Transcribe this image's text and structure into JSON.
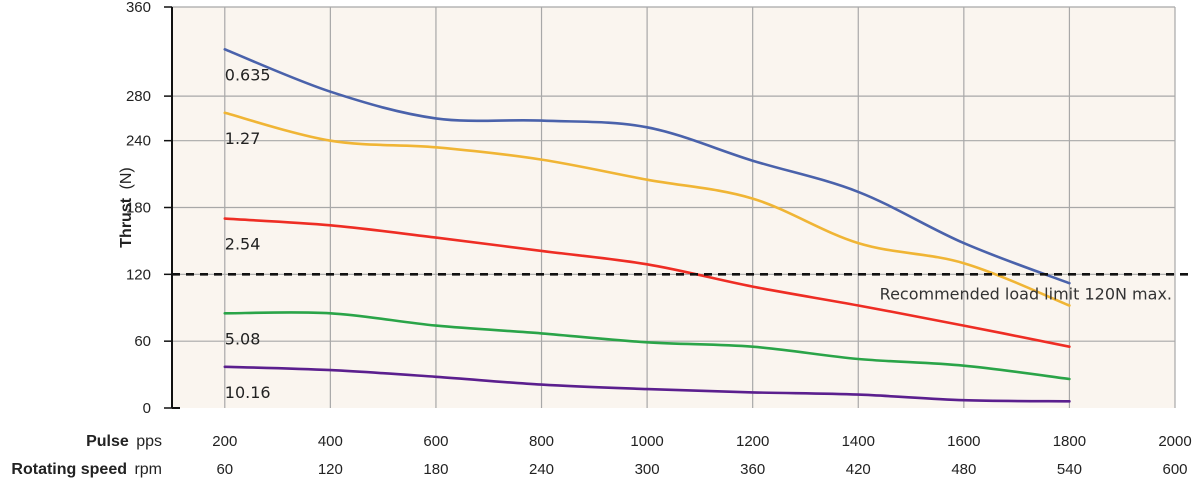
{
  "chart_data": {
    "type": "line",
    "ylabel_bold": "Thrust",
    "ylabel_unit": "(N)",
    "ylim": [
      0,
      360
    ],
    "yticks": [
      0,
      60,
      120,
      180,
      240,
      280,
      360
    ],
    "x_row1": {
      "title_bold": "Pulse",
      "unit": "pps",
      "ticks": [
        "200",
        "400",
        "600",
        "800",
        "1000",
        "1200",
        "1400",
        "1600",
        "1800",
        "2000"
      ]
    },
    "x_row2": {
      "title_bold": "Rotating speed",
      "unit": "rpm",
      "ticks": [
        "60",
        "120",
        "180",
        "240",
        "300",
        "360",
        "420",
        "480",
        "540",
        "600"
      ]
    },
    "xlim": [
      200,
      2000
    ],
    "grid": true,
    "colors": {
      "background": "#faf5ef",
      "grid": "#a8a8a8",
      "axis": "#111111"
    },
    "series": [
      {
        "name": "0.635",
        "color": "#4a62ab",
        "x": [
          200,
          400,
          600,
          800,
          1000,
          1200,
          1400,
          1600,
          1800
        ],
        "y": [
          322,
          284,
          260,
          258,
          252,
          222,
          194,
          148,
          112
        ]
      },
      {
        "name": "1.27",
        "color": "#f0b535",
        "x": [
          200,
          400,
          600,
          800,
          1000,
          1200,
          1400,
          1600,
          1800
        ],
        "y": [
          265,
          240,
          234,
          223,
          205,
          188,
          148,
          130,
          92
        ]
      },
      {
        "name": "2.54",
        "color": "#ee2d24",
        "x": [
          200,
          400,
          600,
          800,
          1000,
          1200,
          1400,
          1600,
          1800
        ],
        "y": [
          170,
          164,
          153,
          141,
          129,
          109,
          92,
          74,
          55
        ]
      },
      {
        "name": "5.08",
        "color": "#2aa448",
        "x": [
          200,
          400,
          600,
          800,
          1000,
          1200,
          1400,
          1600,
          1800
        ],
        "y": [
          85,
          85,
          74,
          67,
          59,
          55,
          44,
          38,
          26
        ]
      },
      {
        "name": "10.16",
        "color": "#5b1f8e",
        "x": [
          200,
          400,
          600,
          800,
          1000,
          1200,
          1400,
          1600,
          1800
        ],
        "y": [
          37,
          34,
          28,
          21,
          17,
          14,
          12,
          7,
          6
        ]
      }
    ],
    "reference_line": {
      "y": 120,
      "label": "Recommended load limit 120N max."
    }
  }
}
